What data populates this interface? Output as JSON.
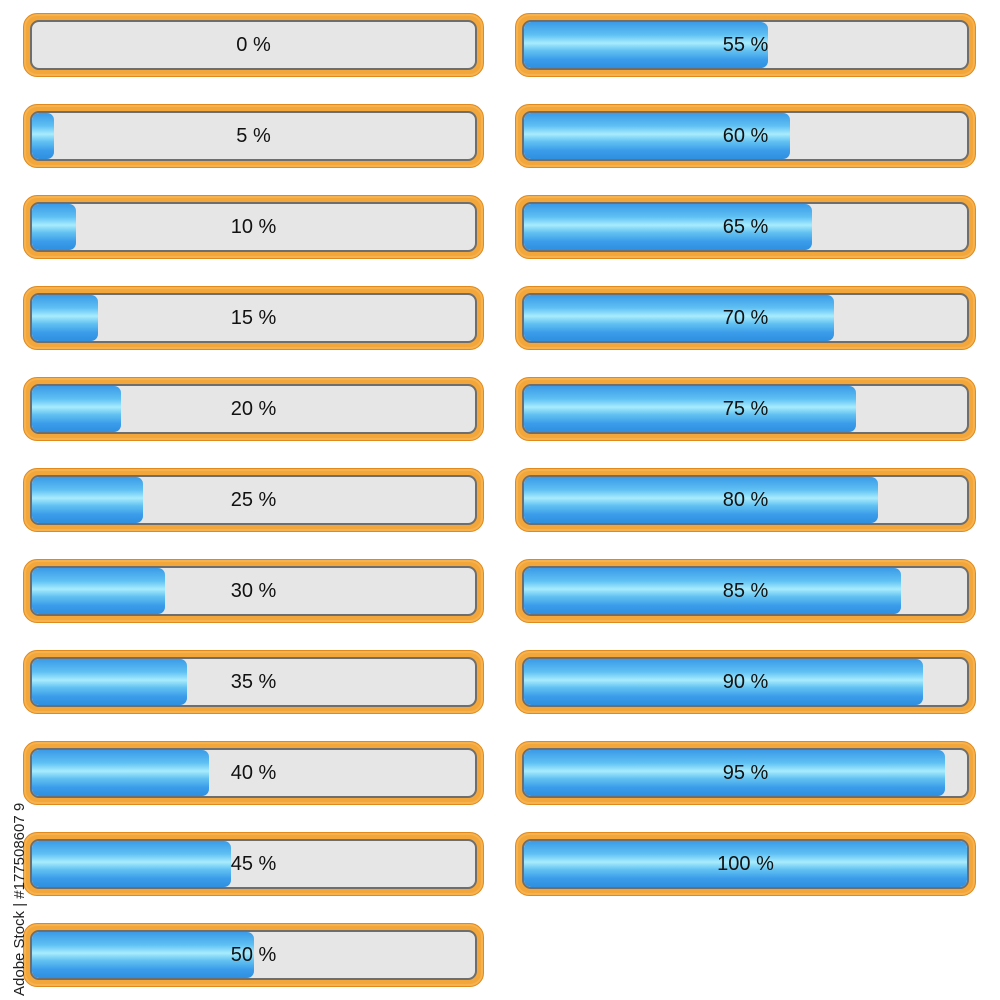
{
  "colors": {
    "frame": "#f3a63a",
    "track": "#e6e6e6",
    "fill": "#3a9cea",
    "text": "#111111"
  },
  "progress_bars": [
    {
      "label": "0 %",
      "value": 0
    },
    {
      "label": "5 %",
      "value": 5
    },
    {
      "label": "10 %",
      "value": 10
    },
    {
      "label": "15 %",
      "value": 15
    },
    {
      "label": "20 %",
      "value": 20
    },
    {
      "label": "25 %",
      "value": 25
    },
    {
      "label": "30 %",
      "value": 30
    },
    {
      "label": "35 %",
      "value": 35
    },
    {
      "label": "40 %",
      "value": 40
    },
    {
      "label": "45 %",
      "value": 45
    },
    {
      "label": "50 %",
      "value": 50
    },
    {
      "label": "55 %",
      "value": 55
    },
    {
      "label": "60 %",
      "value": 60
    },
    {
      "label": "65 %",
      "value": 65
    },
    {
      "label": "70 %",
      "value": 70
    },
    {
      "label": "75 %",
      "value": 75
    },
    {
      "label": "80 %",
      "value": 80
    },
    {
      "label": "85 %",
      "value": 85
    },
    {
      "label": "90 %",
      "value": 90
    },
    {
      "label": "95 %",
      "value": 95
    },
    {
      "label": "100 %",
      "value": 100
    }
  ],
  "side_text": "Adobe Stock | #177508607 9"
}
